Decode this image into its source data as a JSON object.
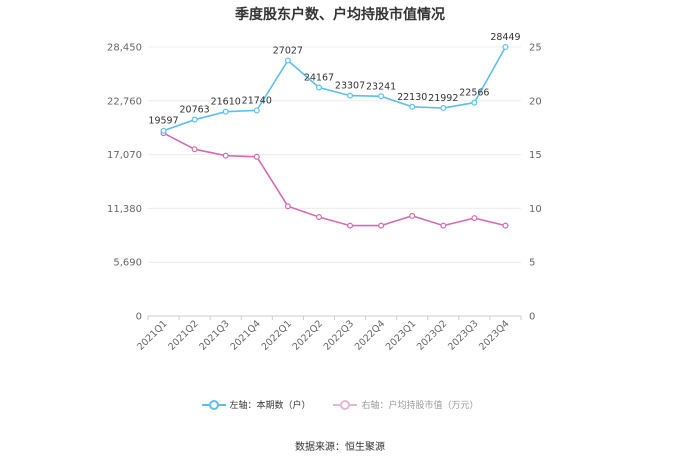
{
  "chart_data": {
    "type": "line",
    "title": "季度股东户数、户均持股市值情况",
    "categories": [
      "2021Q1",
      "2021Q2",
      "2021Q3",
      "2021Q4",
      "2022Q1",
      "2022Q2",
      "2022Q3",
      "2022Q4",
      "2023Q1",
      "2023Q2",
      "2023Q3",
      "2023Q4"
    ],
    "left_axis": {
      "ticks": [
        "0",
        "5,690",
        "11,380",
        "17,070",
        "22,760",
        "28,450"
      ],
      "range": [
        0,
        28450
      ]
    },
    "right_axis": {
      "ticks": [
        "0",
        "5",
        "10",
        "15",
        "20",
        "25"
      ],
      "range": [
        0,
        25
      ]
    },
    "series": [
      {
        "name": "左轴：本期数（户）",
        "axis": "left",
        "color": "#5bc0eb",
        "values": [
          19597,
          20763,
          21610,
          21740,
          27027,
          24167,
          23307,
          23241,
          22130,
          21992,
          22566,
          28449
        ],
        "labels": [
          "19597",
          "20763",
          "21610",
          "21740",
          "27027",
          "24167",
          "23307",
          "23241",
          "22130",
          "21992",
          "22566",
          "28449"
        ]
      },
      {
        "name": "右轴：户均持股市值（万元）",
        "axis": "right",
        "color": "#d86bb0",
        "values": [
          17.0,
          15.5,
          14.9,
          14.8,
          10.2,
          9.2,
          8.4,
          8.4,
          9.3,
          8.4,
          9.1,
          8.4
        ]
      }
    ],
    "grid": true,
    "legend_position": "bottom"
  },
  "footer": {
    "source": "数据来源：恒生聚源"
  }
}
